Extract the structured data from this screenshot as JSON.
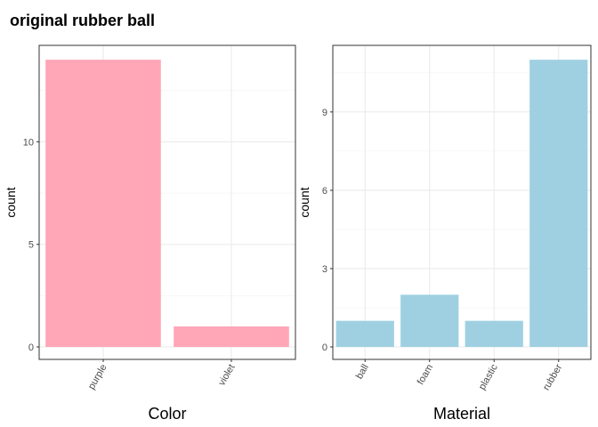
{
  "figure": {
    "title": "original rubber ball"
  },
  "chart_data": [
    {
      "type": "bar",
      "categories": [
        "purple",
        "violet"
      ],
      "values": [
        14,
        1
      ],
      "xlabel": "Color",
      "ylabel": "count",
      "ylim": [
        0,
        14.7
      ],
      "yticks": [
        0,
        5,
        10
      ],
      "bar_color": "#ffa6b7",
      "grid": true
    },
    {
      "type": "bar",
      "categories": [
        "ball",
        "foam",
        "plastic",
        "rubber"
      ],
      "values": [
        1,
        2,
        1,
        11
      ],
      "xlabel": "Material",
      "ylabel": "count",
      "ylim": [
        0,
        11.55
      ],
      "yticks": [
        0,
        3,
        6,
        9
      ],
      "bar_color": "#9fd0e2",
      "grid": true
    }
  ]
}
